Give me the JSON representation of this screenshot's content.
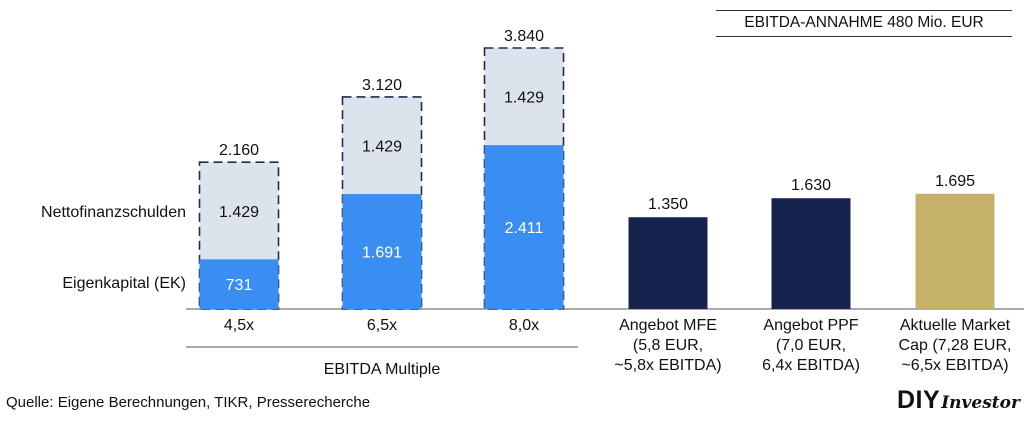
{
  "assumption_label": "EBITDA-ANNAHME 480 Mio. EUR",
  "legend": {
    "debt_label": "Nettofinanzschulden",
    "equity_label": "Eigenkapital (EK)"
  },
  "group_label": "EBITDA Multiple",
  "source": "Quelle: Eigene Berechnungen, TIKR, Presserecherche",
  "logo": {
    "part1": "DIY",
    "part2": "Investor"
  },
  "colors": {
    "equity": "#3A8EF2",
    "debt": "#DDE3EC",
    "mfe": "#17234F",
    "ppf": "#17234F",
    "market": "#C6B16A",
    "outline": "#1F2B52"
  },
  "chart_data": {
    "type": "bar",
    "stacked_series": [
      {
        "category": "4,5x",
        "total_label": "2.160",
        "equity_label": "731",
        "debt_label": "1.429"
      },
      {
        "category": "6,5x",
        "total_label": "3.120",
        "equity_label": "1.691",
        "debt_label": "1.429"
      },
      {
        "category": "8,0x",
        "total_label": "3.840",
        "equity_label": "2.411",
        "debt_label": "1.429"
      }
    ],
    "stacked_values": [
      {
        "total": 2160,
        "equity": 731,
        "debt": 1429
      },
      {
        "total": 3120,
        "equity": 1691,
        "debt": 1429
      },
      {
        "total": 3840,
        "equity": 2411,
        "debt": 1429
      }
    ],
    "single_bars": [
      {
        "key": "mfe",
        "value": 1350,
        "value_label": "1.350",
        "category_lines": [
          "Angebot MFE",
          "(5,8 EUR,",
          "~5,8x EBITDA)"
        ]
      },
      {
        "key": "ppf",
        "value": 1630,
        "value_label": "1.630",
        "category_lines": [
          "Angebot PPF",
          "(7,0 EUR,",
          "6,4x EBITDA)"
        ]
      },
      {
        "key": "market",
        "value": 1695,
        "value_label": "1.695",
        "category_lines": [
          "Aktuelle Market",
          "Cap (7,28 EUR,",
          "~6,5x EBITDA)"
        ]
      }
    ],
    "unit": "Mio. EUR",
    "ylim": [
      0,
      3840
    ]
  }
}
